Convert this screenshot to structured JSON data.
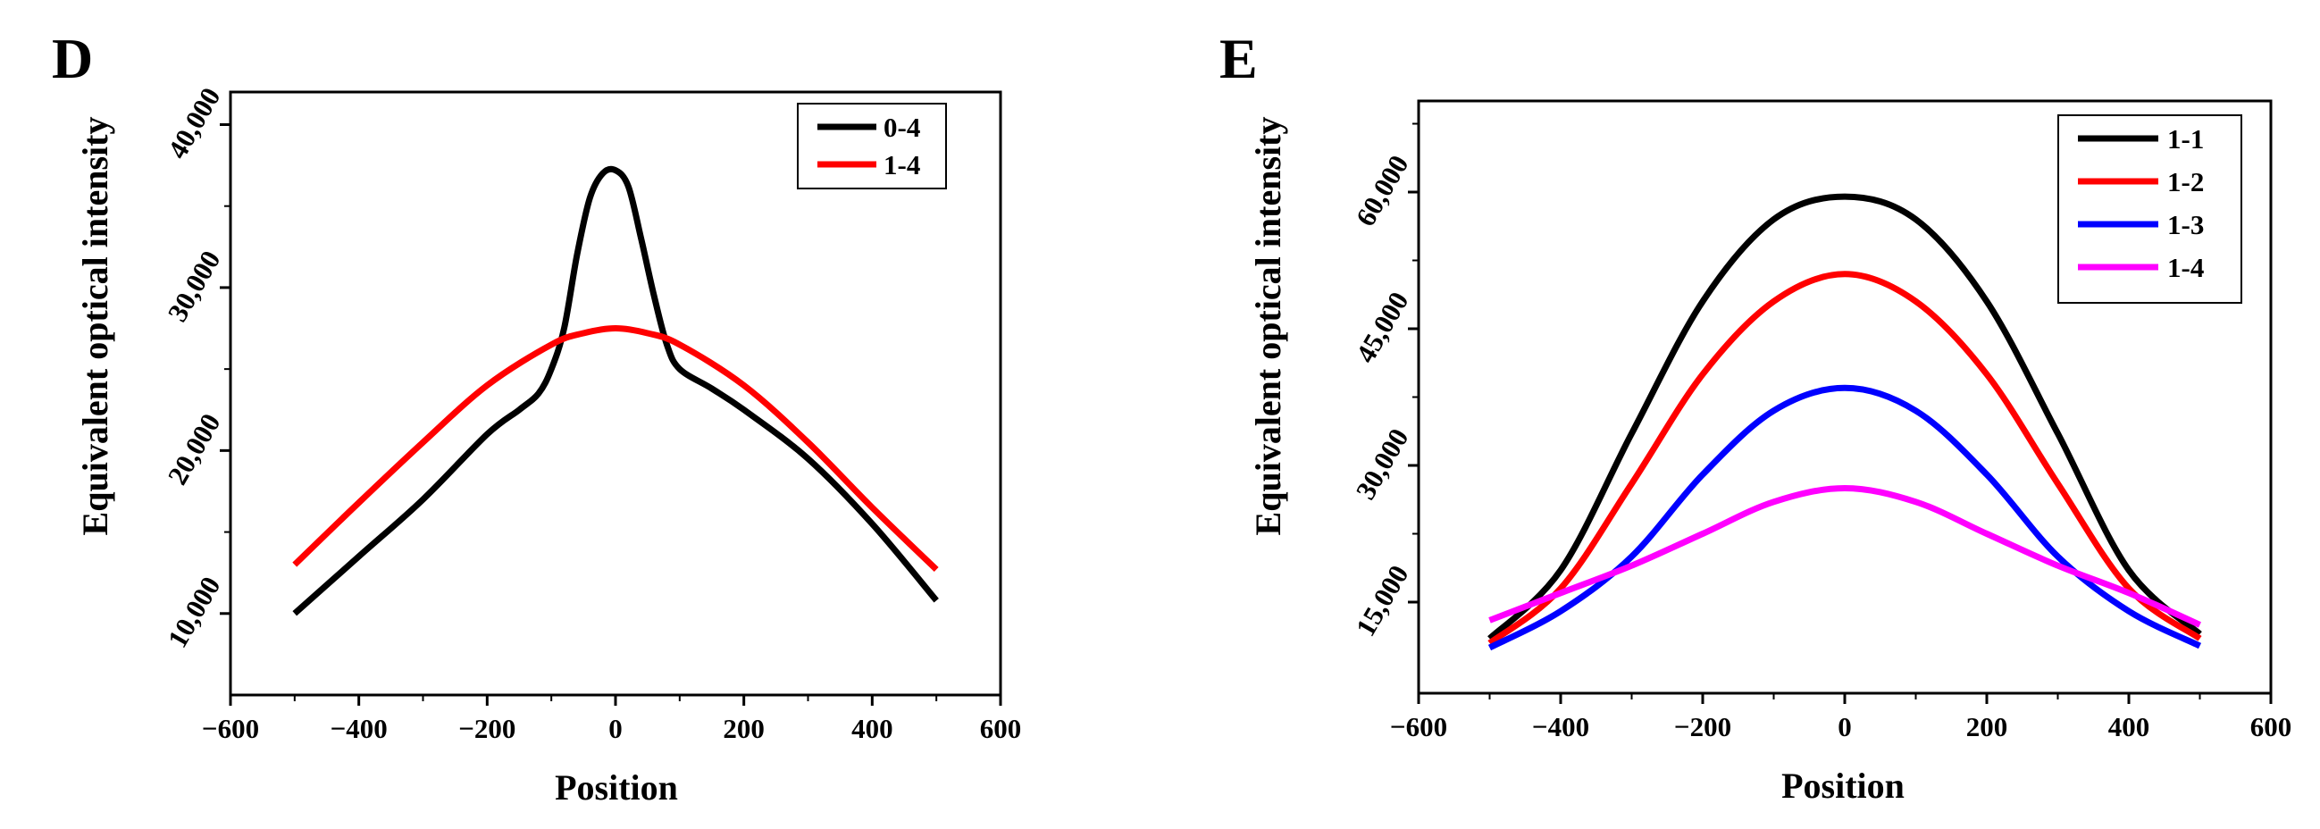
{
  "panels": [
    {
      "letter": "D",
      "legend_labels": [
        "0-4",
        "1-4"
      ],
      "chart_data": {
        "type": "line",
        "title": "",
        "xlabel": "Position",
        "ylabel": "Equivalent optical intensity",
        "xlim": [
          -600,
          600
        ],
        "ylim": [
          5000,
          42000
        ],
        "xticks": [
          -600,
          -400,
          -200,
          0,
          200,
          400,
          600
        ],
        "xtick_labels": [
          "−600",
          "−400",
          "−200",
          "0",
          "200",
          "400",
          "600"
        ],
        "yticks": [
          10000,
          20000,
          30000,
          40000
        ],
        "ytick_labels": [
          "10,000",
          "20,000",
          "30,000",
          "40,000"
        ],
        "legend_position": "top-right",
        "series": [
          {
            "name": "0-4",
            "color": "#000000",
            "x": [
              -500,
              -400,
              -300,
              -200,
              -150,
              -120,
              -100,
              -80,
              -60,
              -40,
              -20,
              0,
              20,
              40,
              60,
              80,
              100,
              150,
              200,
              300,
              400,
              500
            ],
            "y": [
              10000,
              13500,
              17000,
              21000,
              22500,
              23500,
              25000,
              27500,
              32000,
              35500,
              37000,
              37200,
              36200,
              33000,
              29500,
              26500,
              25000,
              23800,
              22500,
              19500,
              15500,
              10800
            ]
          },
          {
            "name": "1-4",
            "color": "#ff0000",
            "x": [
              -500,
              -400,
              -300,
              -200,
              -100,
              -50,
              0,
              50,
              100,
              200,
              300,
              400,
              500
            ],
            "y": [
              13000,
              16800,
              20500,
              24000,
              26500,
              27200,
              27500,
              27200,
              26500,
              24000,
              20500,
              16500,
              12700
            ]
          }
        ]
      }
    },
    {
      "letter": "E",
      "legend_labels": [
        "1-1",
        "1-2",
        "1-3",
        "1-4"
      ],
      "chart_data": {
        "type": "line",
        "title": "",
        "xlabel": "Position",
        "ylabel": "Equivalent optical intensity",
        "xlim": [
          -600,
          600
        ],
        "ylim": [
          5000,
          70000
        ],
        "xticks": [
          -600,
          -400,
          -200,
          0,
          200,
          400,
          600
        ],
        "xtick_labels": [
          "−600",
          "−400",
          "−200",
          "0",
          "200",
          "400",
          "600"
        ],
        "yticks": [
          15000,
          30000,
          45000,
          60000
        ],
        "ytick_labels": [
          "15,000",
          "30,000",
          "45,000",
          "60,000"
        ],
        "legend_position": "top-right",
        "series": [
          {
            "name": "1-1",
            "color": "#000000",
            "x": [
              -500,
              -400,
              -300,
              -200,
              -100,
              0,
              100,
              200,
              300,
              400,
              500
            ],
            "y": [
              11000,
              18500,
              33500,
              48000,
              57000,
              59500,
              57000,
              48000,
              33500,
              18500,
              11500
            ]
          },
          {
            "name": "1-2",
            "color": "#ff0000",
            "x": [
              -500,
              -400,
              -300,
              -200,
              -100,
              0,
              100,
              200,
              300,
              400,
              500
            ],
            "y": [
              10500,
              16500,
              28000,
              40000,
              48000,
              51000,
              48000,
              40000,
              28000,
              16500,
              11000
            ]
          },
          {
            "name": "1-3",
            "color": "#0000ff",
            "x": [
              -500,
              -400,
              -300,
              -200,
              -100,
              0,
              100,
              200,
              300,
              400,
              500
            ],
            "y": [
              10000,
              14000,
              20000,
              29000,
              36000,
              38500,
              36000,
              29000,
              20000,
              14000,
              10200
            ]
          },
          {
            "name": "1-4",
            "color": "#ff00ff",
            "x": [
              -500,
              -400,
              -300,
              -200,
              -100,
              0,
              100,
              200,
              300,
              400,
              500
            ],
            "y": [
              13000,
              16000,
              19000,
              22500,
              26000,
              27500,
              26000,
              22500,
              19000,
              16000,
              12500
            ]
          }
        ]
      }
    }
  ]
}
